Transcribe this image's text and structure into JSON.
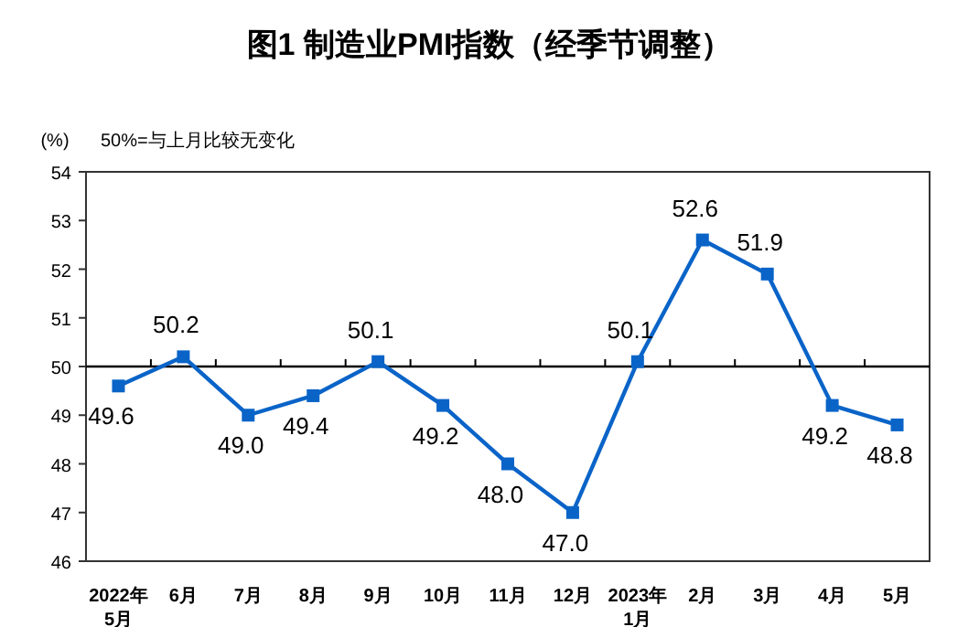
{
  "chart_data": {
    "type": "line",
    "title": "图1  制造业PMI指数（经季节调整）",
    "ylabel": "(%)",
    "annotations": [
      "50%=与上月比较无变化"
    ],
    "categories": [
      "2022年\n5月",
      "6月",
      "7月",
      "8月",
      "9月",
      "10月",
      "11月",
      "12月",
      "2023年\n1月",
      "2月",
      "3月",
      "4月",
      "5月"
    ],
    "series": [
      {
        "color": "#0a64c8",
        "values": [
          49.6,
          50.2,
          49.0,
          49.4,
          50.1,
          49.2,
          48.0,
          47.0,
          50.1,
          52.6,
          51.9,
          49.2,
          48.8
        ],
        "value_labels": [
          "49.6",
          "50.2",
          "49.0",
          "49.4",
          "50.1",
          "49.2",
          "48.0",
          "47.0",
          "50.1",
          "52.6",
          "51.9",
          "49.2",
          "48.8"
        ]
      }
    ],
    "ylim": [
      46,
      54
    ],
    "yticks": [
      46,
      47,
      48,
      49,
      50,
      51,
      52,
      53,
      54
    ],
    "marker": "square",
    "line_style": "solid",
    "ref_lines": [
      {
        "axis": "y",
        "value": 50,
        "color": "#000000"
      }
    ]
  }
}
